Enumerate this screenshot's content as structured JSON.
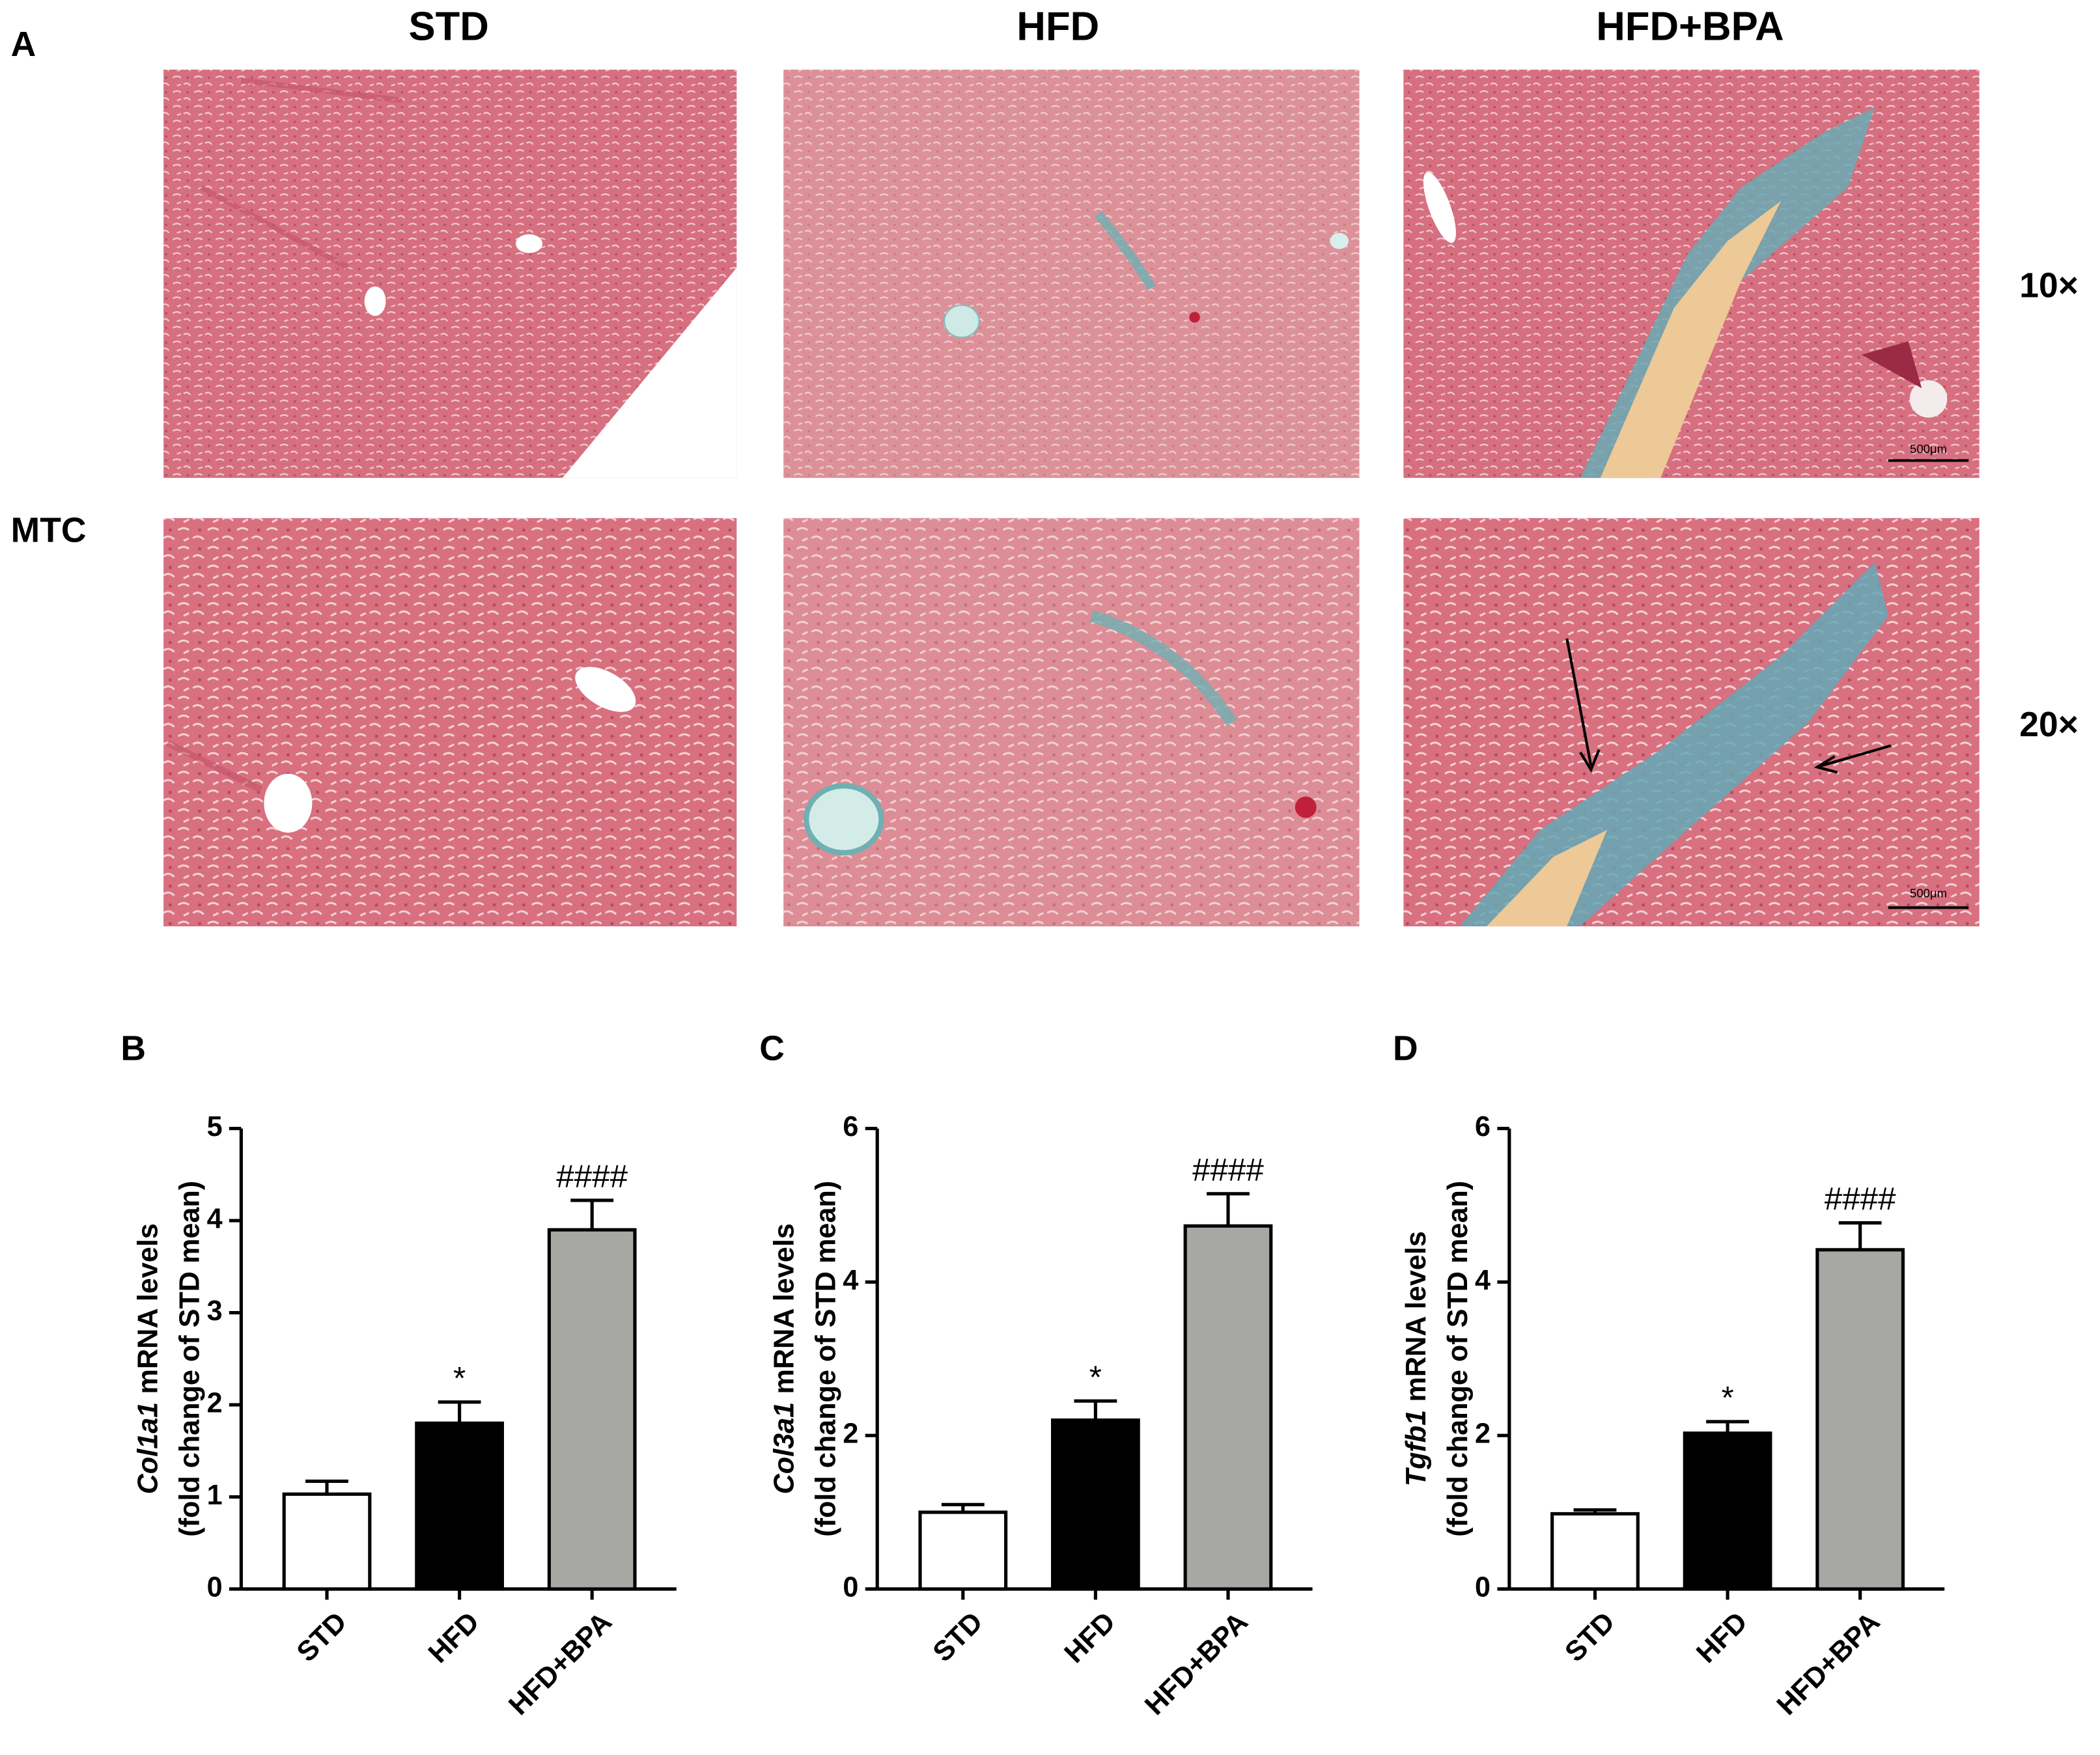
{
  "panel_a": {
    "label": "A",
    "columns": [
      "STD",
      "HFD",
      "HFD+BPA"
    ],
    "stain": "MTC",
    "magnifications": [
      "10×",
      "20×"
    ],
    "scale_bar": "500μm"
  },
  "chart_data": [
    {
      "type": "bar",
      "panel_label": "B",
      "ylabel": {
        "gene": "Col1a1",
        "text": "mRNA levels",
        "line2": "(fold change of STD mean)"
      },
      "categories": [
        "STD",
        "HFD",
        "HFD+BPA"
      ],
      "values": [
        1.03,
        1.8,
        3.9
      ],
      "errors": [
        0.14,
        0.23,
        0.32
      ],
      "annotations": [
        null,
        "*",
        "####"
      ],
      "colors": [
        "#ffffff",
        "#000000",
        "#a7a7a3"
      ],
      "ylim": [
        0,
        5
      ],
      "yticks": [
        0,
        1,
        2,
        3,
        4,
        5
      ]
    },
    {
      "type": "bar",
      "panel_label": "C",
      "ylabel": {
        "gene": "Col3a1",
        "text": "mRNA levels",
        "line2": "(fold change of STD mean)"
      },
      "categories": [
        "STD",
        "HFD",
        "HFD+BPA"
      ],
      "values": [
        1.0,
        2.2,
        4.73
      ],
      "errors": [
        0.1,
        0.25,
        0.42
      ],
      "annotations": [
        null,
        "*",
        "####"
      ],
      "colors": [
        "#ffffff",
        "#000000",
        "#a7a7a3"
      ],
      "ylim": [
        0,
        6
      ],
      "yticks": [
        0,
        2,
        4,
        6
      ]
    },
    {
      "type": "bar",
      "panel_label": "D",
      "ylabel": {
        "gene": "Tgfb1",
        "text": "mRNA levels",
        "line2": "(fold change of STD mean)"
      },
      "categories": [
        "STD",
        "HFD",
        "HFD+BPA"
      ],
      "values": [
        0.98,
        2.03,
        4.42
      ],
      "errors": [
        0.05,
        0.15,
        0.35
      ],
      "annotations": [
        null,
        "*",
        "####"
      ],
      "colors": [
        "#ffffff",
        "#000000",
        "#a7a7a3"
      ],
      "ylim": [
        0,
        6
      ],
      "yticks": [
        0,
        2,
        4,
        6
      ]
    }
  ]
}
